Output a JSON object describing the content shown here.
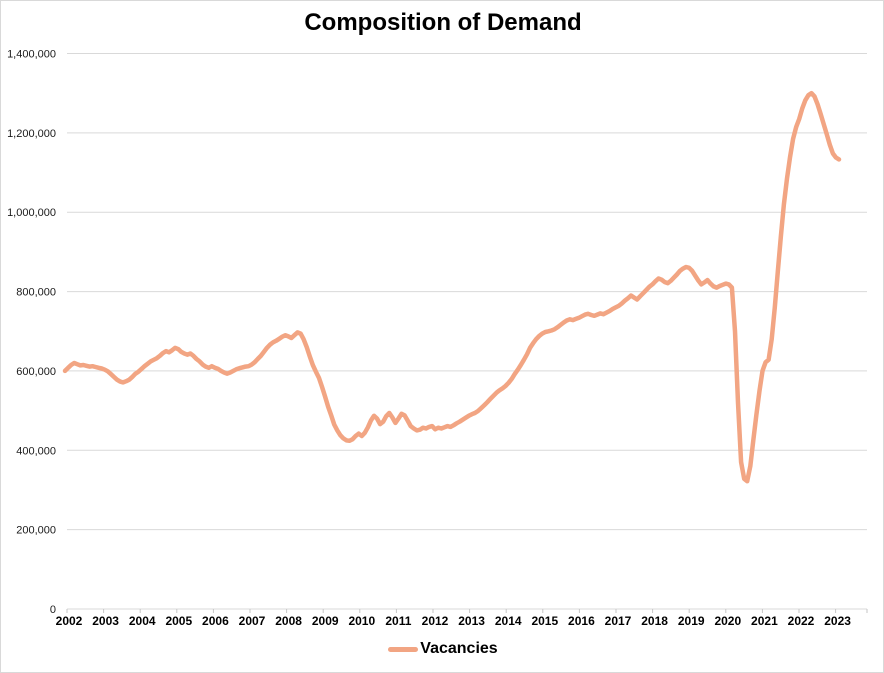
{
  "chart": {
    "title": "Composition of Demand",
    "legend": {
      "label": "Vacancies",
      "position": "bottom"
    },
    "colors": {
      "line": "#f2a583",
      "gridline": "#d9d9d9",
      "axis": "#c6c6c6",
      "text": "#000000"
    },
    "y_axis": {
      "range": [
        0,
        1400000
      ],
      "tick_step": 200000,
      "tick_labels": [
        "0",
        "200,000",
        "400,000",
        "600,000",
        "800,000",
        "1,000,000",
        "1,200,000",
        "1,400,000"
      ]
    },
    "x_axis": {
      "tick_labels": [
        "2002",
        "2003",
        "2004",
        "2005",
        "2006",
        "2007",
        "2008",
        "2009",
        "2010",
        "2011",
        "2012",
        "2013",
        "2014",
        "2015",
        "2016",
        "2017",
        "2018",
        "2019",
        "2020",
        "2021",
        "2022",
        "2023"
      ]
    }
  },
  "chart_data": {
    "type": "line",
    "title": "Composition of Demand",
    "xlabel": "",
    "ylabel": "",
    "ylim": [
      0,
      1400000
    ],
    "grid": "horizontal",
    "legend_position": "bottom",
    "x_unit": "month",
    "x_start": "2002-01",
    "x_end": "2023-02",
    "series": [
      {
        "name": "Vacancies",
        "color": "#f2a583",
        "values": [
          600000,
          608000,
          615000,
          620000,
          617000,
          614000,
          615000,
          613000,
          611000,
          612000,
          610000,
          608000,
          606000,
          603000,
          599000,
          592000,
          585000,
          578000,
          573000,
          571000,
          574000,
          578000,
          585000,
          593000,
          598000,
          605000,
          612000,
          618000,
          624000,
          628000,
          632000,
          638000,
          645000,
          650000,
          647000,
          652000,
          658000,
          655000,
          648000,
          644000,
          641000,
          644000,
          638000,
          630000,
          624000,
          616000,
          611000,
          608000,
          612000,
          608000,
          605000,
          600000,
          596000,
          593000,
          596000,
          600000,
          604000,
          607000,
          609000,
          611000,
          612000,
          616000,
          622000,
          630000,
          638000,
          648000,
          658000,
          666000,
          672000,
          676000,
          681000,
          686000,
          690000,
          687000,
          683000,
          690000,
          697000,
          694000,
          680000,
          660000,
          637000,
          615000,
          598000,
          583000,
          560000,
          536000,
          510000,
          488000,
          465000,
          450000,
          438000,
          430000,
          425000,
          424000,
          428000,
          436000,
          442000,
          436000,
          444000,
          458000,
          475000,
          487000,
          480000,
          466000,
          472000,
          486000,
          494000,
          483000,
          469000,
          480000,
          492000,
          488000,
          475000,
          461000,
          455000,
          450000,
          452000,
          457000,
          455000,
          459000,
          461000,
          453000,
          457000,
          455000,
          458000,
          461000,
          459000,
          463000,
          468000,
          472000,
          477000,
          482000,
          487000,
          491000,
          494000,
          499000,
          506000,
          513000,
          521000,
          529000,
          537000,
          545000,
          551000,
          556000,
          562000,
          570000,
          580000,
          592000,
          603000,
          615000,
          628000,
          642000,
          658000,
          670000,
          680000,
          688000,
          694000,
          698000,
          700000,
          702000,
          705000,
          710000,
          716000,
          722000,
          727000,
          730000,
          728000,
          731000,
          734000,
          738000,
          742000,
          744000,
          741000,
          739000,
          742000,
          745000,
          743000,
          747000,
          751000,
          756000,
          760000,
          764000,
          770000,
          777000,
          783000,
          790000,
          785000,
          780000,
          788000,
          796000,
          804000,
          812000,
          818000,
          826000,
          833000,
          830000,
          824000,
          821000,
          827000,
          835000,
          843000,
          852000,
          858000,
          862000,
          860000,
          852000,
          840000,
          828000,
          818000,
          823000,
          829000,
          820000,
          813000,
          810000,
          814000,
          817000,
          820000,
          818000,
          810000,
          700000,
          520000,
          370000,
          328000,
          322000,
          360000,
          425000,
          490000,
          550000,
          600000,
          622000,
          628000,
          680000,
          760000,
          850000,
          940000,
          1020000,
          1085000,
          1140000,
          1185000,
          1215000,
          1235000,
          1262000,
          1282000,
          1295000,
          1300000,
          1292000,
          1272000,
          1248000,
          1222000,
          1196000,
          1170000,
          1148000,
          1138000,
          1133000
        ]
      }
    ]
  }
}
